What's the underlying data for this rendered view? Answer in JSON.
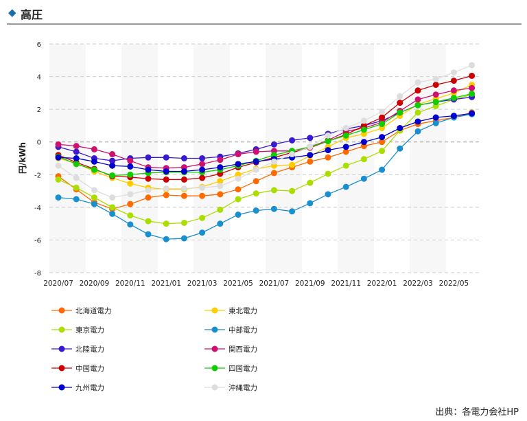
{
  "header": {
    "title": "高圧"
  },
  "source": "出典：各電力会社HP",
  "chart_data": {
    "type": "line",
    "title": "高圧",
    "xlabel": "",
    "ylabel": "円/kWh",
    "ylim": [
      -8,
      6
    ],
    "yticks": [
      "6",
      "4",
      "2",
      "0",
      "-2",
      "-4",
      "-6",
      "-8"
    ],
    "x": [
      "2020/07",
      "2020/08",
      "2020/09",
      "2020/10",
      "2020/11",
      "2020/12",
      "2021/01",
      "2021/02",
      "2021/03",
      "2021/04",
      "2021/05",
      "2021/06",
      "2021/07",
      "2021/08",
      "2021/09",
      "2021/10",
      "2021/11",
      "2021/12",
      "2022/01",
      "2022/02",
      "2022/03",
      "2022/04",
      "2022/05",
      "2022/06"
    ],
    "xtick_labels": [
      "2020/07",
      "2020/09",
      "2020/11",
      "2021/01",
      "2021/03",
      "2021/05",
      "2021/07",
      "2021/09",
      "2021/11",
      "2022/01",
      "2022/03",
      "2022/05"
    ],
    "legend_position": "bottom",
    "series": [
      {
        "name": "北海道電力",
        "color": "#ff6a00",
        "values": [
          -2.1,
          -2.9,
          -3.7,
          -4.1,
          -3.8,
          -3.4,
          -3.25,
          -3.3,
          -3.3,
          -3.2,
          -2.9,
          -2.4,
          -1.9,
          -1.55,
          -1.2,
          -0.95,
          -0.6,
          -0.25,
          0.0,
          0.7,
          1.1,
          1.3,
          1.5,
          1.8
        ]
      },
      {
        "name": "東北電力",
        "color": "#ffcc00",
        "values": [
          -1.0,
          -1.3,
          -1.8,
          -2.2,
          -2.55,
          -2.8,
          -2.9,
          -2.9,
          -2.75,
          -2.4,
          -2.0,
          -1.65,
          -1.45,
          -1.4,
          -0.85,
          -0.3,
          0.25,
          0.5,
          0.85,
          1.6,
          2.3,
          2.65,
          3.0,
          3.5
        ]
      },
      {
        "name": "東京電力",
        "color": "#aadd00",
        "values": [
          -2.3,
          -2.8,
          -3.4,
          -4.0,
          -4.5,
          -4.85,
          -5.0,
          -4.95,
          -4.65,
          -4.15,
          -3.5,
          -3.15,
          -2.95,
          -3.0,
          -2.5,
          -1.95,
          -1.45,
          -1.05,
          -0.55,
          0.7,
          1.8,
          2.2,
          2.6,
          2.9
        ]
      },
      {
        "name": "中部電力",
        "color": "#1a8fd0",
        "values": [
          -3.4,
          -3.5,
          -3.8,
          -4.4,
          -5.05,
          -5.65,
          -5.95,
          -5.9,
          -5.55,
          -5.0,
          -4.45,
          -4.2,
          -4.1,
          -4.25,
          -3.75,
          -3.2,
          -2.75,
          -2.25,
          -1.7,
          -0.4,
          0.65,
          1.15,
          1.5,
          1.7
        ]
      },
      {
        "name": "北陸電力",
        "color": "#3a1ad0",
        "values": [
          -0.3,
          -0.6,
          -1.0,
          -1.15,
          -1.0,
          -0.95,
          -0.95,
          -1.0,
          -1.0,
          -0.9,
          -0.7,
          -0.45,
          -0.15,
          0.1,
          0.25,
          0.5,
          0.8,
          1.0,
          1.3,
          1.8,
          2.25,
          2.45,
          2.6,
          2.75
        ]
      },
      {
        "name": "関西電力",
        "color": "#d0106e",
        "values": [
          -0.15,
          -0.25,
          -0.45,
          -0.75,
          -1.15,
          -1.55,
          -1.6,
          -1.55,
          -1.35,
          -1.1,
          -0.75,
          -0.6,
          -0.55,
          -0.55,
          -0.3,
          0.1,
          0.65,
          0.85,
          1.2,
          1.9,
          2.6,
          2.9,
          3.15,
          3.3
        ]
      },
      {
        "name": "中国電力",
        "color": "#cc0000",
        "values": [
          -0.8,
          -1.25,
          -1.65,
          -2.1,
          -2.15,
          -2.25,
          -2.3,
          -2.3,
          -2.2,
          -1.95,
          -1.55,
          -1.25,
          -0.95,
          -0.65,
          -0.35,
          0.05,
          0.45,
          1.0,
          1.5,
          2.4,
          3.15,
          3.5,
          3.75,
          4.05
        ]
      },
      {
        "name": "四国電力",
        "color": "#11cc00",
        "values": [
          -0.9,
          -1.35,
          -1.7,
          -2.05,
          -2.0,
          -1.9,
          -1.85,
          -1.85,
          -1.85,
          -1.7,
          -1.45,
          -1.15,
          -0.8,
          -0.55,
          -0.3,
          0.05,
          0.4,
          0.75,
          1.1,
          1.8,
          2.25,
          2.45,
          2.7,
          2.95
        ]
      },
      {
        "name": "九州電力",
        "color": "#0000cc",
        "values": [
          -0.95,
          -1.0,
          -1.2,
          -1.45,
          -1.5,
          -1.7,
          -1.8,
          -1.8,
          -1.7,
          -1.55,
          -1.35,
          -1.2,
          -1.05,
          -0.95,
          -0.8,
          -0.5,
          -0.3,
          0.0,
          0.3,
          0.85,
          1.25,
          1.5,
          1.6,
          1.75
        ]
      },
      {
        "name": "沖縄電力",
        "color": "#dddddd",
        "values": [
          -1.45,
          -2.2,
          -2.95,
          -3.4,
          -3.2,
          -2.95,
          -2.85,
          -2.85,
          -2.8,
          -2.7,
          -2.25,
          -1.7,
          -1.2,
          -0.75,
          -0.3,
          0.4,
          0.85,
          1.3,
          1.85,
          2.8,
          3.65,
          3.85,
          4.25,
          4.7
        ]
      }
    ]
  }
}
